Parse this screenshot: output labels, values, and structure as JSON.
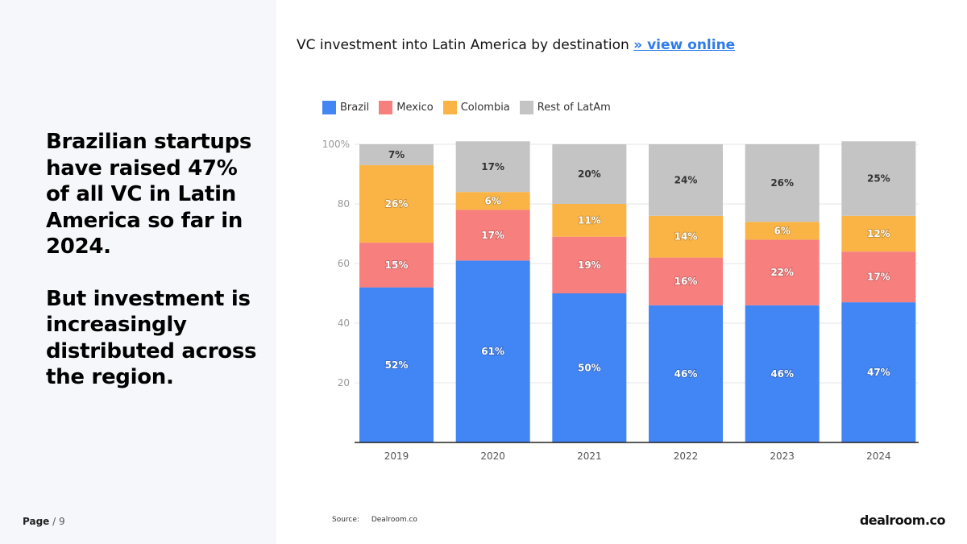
{
  "headline": {
    "para1": "Brazilian startups have raised 47% of all VC in Latin America so far in 2024.",
    "para2": "But investment is increasingly distributed across the region."
  },
  "page": {
    "label": "Page",
    "total": "/ 9"
  },
  "chart_title": {
    "text": "VC investment into Latin America by destination",
    "link": "» view online"
  },
  "source": {
    "label": "Source:",
    "value": "Dealroom.co"
  },
  "logo": "dealroom.co",
  "chart_data": {
    "type": "bar",
    "stacked": true,
    "title": "VC investment into Latin America by destination",
    "categories": [
      "2019",
      "2020",
      "2021",
      "2022",
      "2023",
      "2024"
    ],
    "ylim": [
      0,
      100
    ],
    "yticks": [
      20,
      40,
      60,
      80,
      100
    ],
    "ytick_labels": [
      "20",
      "40",
      "60",
      "80",
      "100%"
    ],
    "legend_position": "top-left",
    "series": [
      {
        "name": "Brazil",
        "color": "#4285f4",
        "values": [
          52,
          61,
          50,
          46,
          46,
          47
        ],
        "labels": [
          "52%",
          "61%",
          "50%",
          "46%",
          "46%",
          "47%"
        ]
      },
      {
        "name": "Mexico",
        "color": "#f77f7e",
        "values": [
          15,
          17,
          19,
          16,
          22,
          17
        ],
        "labels": [
          "15%",
          "17%",
          "19%",
          "16%",
          "22%",
          "17%"
        ]
      },
      {
        "name": "Colombia",
        "color": "#fab446",
        "values": [
          26,
          6,
          11,
          14,
          6,
          12
        ],
        "labels": [
          "26%",
          "6%",
          "11%",
          "14%",
          "6%",
          "12%"
        ]
      },
      {
        "name": "Rest of LatAm",
        "color": "#c4c4c4",
        "values": [
          7,
          17,
          20,
          24,
          26,
          25
        ],
        "labels": [
          "7%",
          "17%",
          "20%",
          "24%",
          "26%",
          "25%"
        ]
      }
    ]
  }
}
